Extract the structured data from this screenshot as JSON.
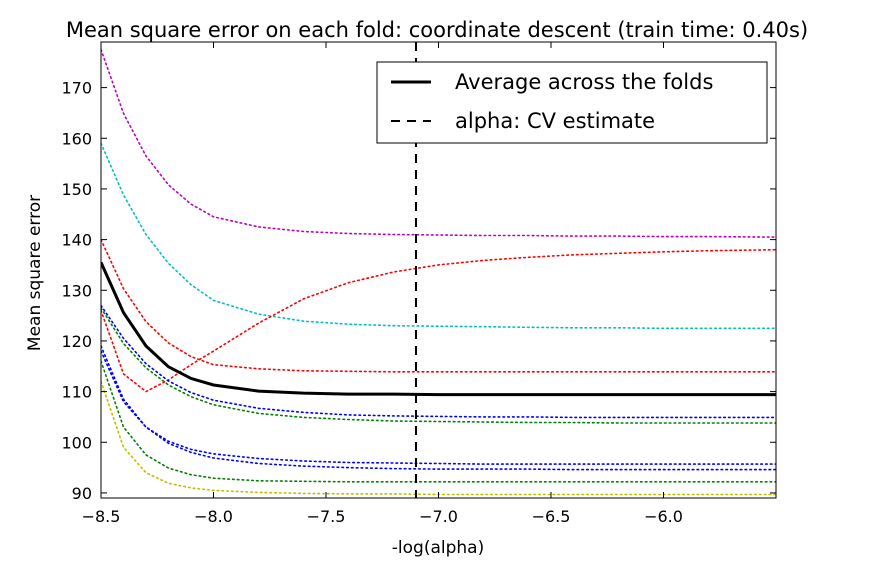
{
  "chart_data": {
    "type": "line",
    "title": "Mean square error on each fold: coordinate descent (train time: 0.40s)",
    "xlabel": "-log(alpha)",
    "ylabel": "Mean square error",
    "xlim": [
      -8.5,
      -5.5
    ],
    "ylim": [
      89,
      179
    ],
    "xticks": [
      -8.5,
      -8.0,
      -7.5,
      -7.0,
      -6.5,
      -6.0
    ],
    "xtick_labels": [
      "−8.5",
      "−8.0",
      "−7.5",
      "−7.0",
      "−6.5",
      "−6.0"
    ],
    "yticks": [
      90,
      100,
      110,
      120,
      130,
      140,
      150,
      160,
      170
    ],
    "grid": false,
    "legend_position": "top-right",
    "legend": [
      {
        "label": "Average across the folds",
        "style": "solid",
        "color": "#000000"
      },
      {
        "label": "alpha: CV estimate",
        "style": "dashed",
        "color": "#000000"
      }
    ],
    "cv_alpha_line": {
      "x": -7.1,
      "style": "dashed",
      "color": "#000000"
    },
    "x": [
      -8.5,
      -8.4,
      -8.3,
      -8.2,
      -8.1,
      -8.0,
      -7.8,
      -7.6,
      -7.4,
      -7.2,
      -7.0,
      -6.8,
      -6.6,
      -6.4,
      -6.2,
      -6.0,
      -5.8,
      -5.5
    ],
    "series": [
      {
        "color": "#bf00bf",
        "style": "dotted",
        "values": [
          177.5,
          164.9,
          156.5,
          150.8,
          147.0,
          144.5,
          142.5,
          141.6,
          141.2,
          141.0,
          140.9,
          140.8,
          140.8,
          140.7,
          140.7,
          140.6,
          140.6,
          140.5
        ]
      },
      {
        "color": "#00bfbf",
        "style": "dotted",
        "values": [
          159.0,
          148.8,
          141.0,
          135.3,
          131.1,
          128.0,
          125.3,
          123.9,
          123.3,
          123.0,
          122.9,
          122.8,
          122.7,
          122.6,
          122.6,
          122.5,
          122.5,
          122.5
        ]
      },
      {
        "color": "#ff0000",
        "style": "dotted",
        "values": [
          140.0,
          130.3,
          123.8,
          119.6,
          116.9,
          115.3,
          114.5,
          114.1,
          114.0,
          113.9,
          113.9,
          113.9,
          113.9,
          113.9,
          113.9,
          113.9,
          113.9,
          113.9
        ]
      },
      {
        "color": "#ff0000",
        "style": "dotted",
        "values": [
          126.0,
          113.5,
          110.0,
          112.3,
          115.3,
          118.0,
          123.5,
          128.3,
          131.5,
          133.6,
          135.0,
          135.9,
          136.5,
          137.0,
          137.3,
          137.6,
          137.8,
          138.0
        ]
      },
      {
        "color": "#0000ff",
        "style": "dotted",
        "values": [
          127.0,
          120.5,
          115.5,
          112.1,
          109.8,
          108.3,
          106.7,
          105.9,
          105.4,
          105.2,
          105.1,
          105.0,
          105.0,
          104.9,
          104.9,
          104.9,
          104.9,
          104.9
        ]
      },
      {
        "color": "#008000",
        "style": "dotted",
        "values": [
          126.5,
          119.5,
          114.7,
          111.3,
          109.0,
          107.4,
          105.7,
          104.9,
          104.5,
          104.2,
          104.1,
          104.0,
          103.9,
          103.9,
          103.8,
          103.8,
          103.8,
          103.8
        ]
      },
      {
        "color": "#0000ff",
        "style": "dotted",
        "values": [
          119.0,
          108.5,
          103.0,
          99.8,
          98.0,
          96.9,
          95.8,
          95.3,
          95.0,
          94.8,
          94.7,
          94.7,
          94.7,
          94.6,
          94.6,
          94.6,
          94.6,
          94.6
        ]
      },
      {
        "color": "#0000ff",
        "style": "dotted",
        "values": [
          118.0,
          108.0,
          103.0,
          100.2,
          98.6,
          97.7,
          96.8,
          96.3,
          96.0,
          95.9,
          95.8,
          95.7,
          95.7,
          95.7,
          95.7,
          95.7,
          95.7,
          95.7
        ]
      },
      {
        "color": "#008000",
        "style": "dotted",
        "values": [
          116.0,
          103.0,
          97.5,
          94.9,
          93.6,
          92.9,
          92.4,
          92.3,
          92.2,
          92.2,
          92.2,
          92.2,
          92.2,
          92.2,
          92.2,
          92.2,
          92.2,
          92.2
        ]
      },
      {
        "color": "#bfbf00",
        "style": "dotted",
        "values": [
          112.0,
          99.0,
          94.0,
          91.9,
          91.0,
          90.5,
          90.1,
          89.9,
          89.8,
          89.8,
          89.7,
          89.7,
          89.7,
          89.7,
          89.7,
          89.7,
          89.7,
          89.7
        ]
      },
      {
        "name": "Average across the folds",
        "color": "#000000",
        "style": "solid",
        "values": [
          135.5,
          125.6,
          119.0,
          114.9,
          112.6,
          111.3,
          110.1,
          109.7,
          109.5,
          109.5,
          109.4,
          109.4,
          109.4,
          109.4,
          109.4,
          109.4,
          109.4,
          109.4
        ]
      }
    ]
  }
}
